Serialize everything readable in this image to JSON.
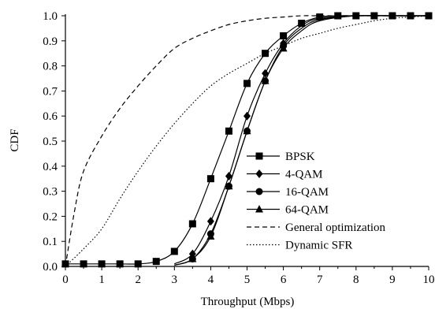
{
  "chart_data": {
    "type": "line",
    "xlabel": "Throughput (Mbps)",
    "ylabel": "CDF",
    "xlim": [
      0,
      10
    ],
    "ylim": [
      0,
      1.0
    ],
    "xticks": [
      "0",
      "1",
      "2",
      "3",
      "4",
      "5",
      "6",
      "7",
      "8",
      "9",
      "10"
    ],
    "yticks": [
      "0.0",
      "0.1",
      "0.2",
      "0.3",
      "0.4",
      "0.5",
      "0.6",
      "0.7",
      "0.8",
      "0.9",
      "1.0"
    ],
    "grid": false,
    "legend_position": "bottom-right",
    "series": [
      {
        "name": "BPSK",
        "marker": "square",
        "dash": "solid",
        "points": [
          [
            0,
            0.01
          ],
          [
            0.5,
            0.01
          ],
          [
            1,
            0.01
          ],
          [
            1.5,
            0.01
          ],
          [
            2,
            0.01
          ],
          [
            2.5,
            0.02
          ],
          [
            3,
            0.06
          ],
          [
            3.5,
            0.17
          ],
          [
            4,
            0.35
          ],
          [
            4.5,
            0.54
          ],
          [
            5,
            0.73
          ],
          [
            5.5,
            0.85
          ],
          [
            6,
            0.92
          ],
          [
            6.5,
            0.97
          ],
          [
            7,
            0.995
          ],
          [
            7.5,
            1.0
          ],
          [
            8,
            1.0
          ],
          [
            8.5,
            1.0
          ],
          [
            9,
            1.0
          ],
          [
            9.5,
            1.0
          ],
          [
            10,
            1.0
          ]
        ],
        "marker_x": [
          0,
          0.5,
          1,
          1.5,
          2,
          2.5,
          3,
          3.5,
          4,
          4.5,
          5,
          5.5,
          6,
          6.5,
          7,
          7.5,
          8,
          8.5,
          9,
          9.5,
          10
        ]
      },
      {
        "name": "4-QAM",
        "marker": "diamond",
        "dash": "solid",
        "points": [
          [
            3,
            0.01
          ],
          [
            3.5,
            0.05
          ],
          [
            4,
            0.18
          ],
          [
            4.5,
            0.36
          ],
          [
            5,
            0.6
          ],
          [
            5.5,
            0.77
          ],
          [
            6,
            0.89
          ],
          [
            6.5,
            0.96
          ],
          [
            7,
            0.99
          ],
          [
            8,
            1.0
          ],
          [
            9,
            1.0
          ],
          [
            10,
            1.0
          ]
        ],
        "marker_x": [
          3.5,
          4,
          4.5,
          5,
          5.5,
          6
        ]
      },
      {
        "name": "16-QAM",
        "marker": "circle",
        "dash": "solid",
        "points": [
          [
            3,
            0.005
          ],
          [
            3.5,
            0.03
          ],
          [
            4,
            0.13
          ],
          [
            4.5,
            0.32
          ],
          [
            5,
            0.54
          ],
          [
            5.5,
            0.74
          ],
          [
            6,
            0.88
          ],
          [
            6.5,
            0.95
          ],
          [
            7,
            0.985
          ],
          [
            8,
            1.0
          ],
          [
            9,
            1.0
          ],
          [
            10,
            1.0
          ]
        ],
        "marker_x": [
          3.5,
          4,
          4.5,
          5,
          5.5,
          6
        ]
      },
      {
        "name": "64-QAM",
        "marker": "triangle",
        "dash": "solid",
        "points": [
          [
            3,
            0.005
          ],
          [
            3.5,
            0.03
          ],
          [
            4,
            0.12
          ],
          [
            4.5,
            0.32
          ],
          [
            5,
            0.54
          ],
          [
            5.5,
            0.74
          ],
          [
            6,
            0.87
          ],
          [
            6.5,
            0.94
          ],
          [
            7,
            0.98
          ],
          [
            8,
            1.0
          ],
          [
            9,
            1.0
          ],
          [
            10,
            1.0
          ]
        ],
        "marker_x": [
          3.5,
          4,
          4.5,
          5,
          5.5,
          6
        ]
      },
      {
        "name": "General optimization",
        "marker": "none",
        "dash": "dashed",
        "points": [
          [
            0,
            0.0
          ],
          [
            0.25,
            0.22
          ],
          [
            0.5,
            0.38
          ],
          [
            1,
            0.52
          ],
          [
            1.5,
            0.63
          ],
          [
            2,
            0.72
          ],
          [
            2.5,
            0.8
          ],
          [
            3,
            0.87
          ],
          [
            3.5,
            0.91
          ],
          [
            4,
            0.94
          ],
          [
            4.5,
            0.965
          ],
          [
            5,
            0.98
          ],
          [
            5.5,
            0.99
          ],
          [
            6,
            0.995
          ],
          [
            6.5,
            1.0
          ],
          [
            7,
            1.0
          ],
          [
            8,
            1.0
          ],
          [
            10,
            1.0
          ]
        ],
        "marker_x": []
      },
      {
        "name": "Dynamic SFR",
        "marker": "none",
        "dash": "dotted",
        "points": [
          [
            0,
            0.0
          ],
          [
            0.5,
            0.07
          ],
          [
            1,
            0.15
          ],
          [
            1.5,
            0.27
          ],
          [
            2,
            0.38
          ],
          [
            2.5,
            0.48
          ],
          [
            3,
            0.57
          ],
          [
            3.5,
            0.65
          ],
          [
            4,
            0.72
          ],
          [
            4.5,
            0.77
          ],
          [
            5,
            0.81
          ],
          [
            5.5,
            0.85
          ],
          [
            6,
            0.88
          ],
          [
            6.5,
            0.91
          ],
          [
            7,
            0.93
          ],
          [
            7.5,
            0.95
          ],
          [
            8,
            0.965
          ],
          [
            8.5,
            0.98
          ],
          [
            9,
            0.99
          ],
          [
            9.5,
            0.995
          ],
          [
            10,
            1.0
          ]
        ],
        "marker_x": []
      }
    ]
  }
}
